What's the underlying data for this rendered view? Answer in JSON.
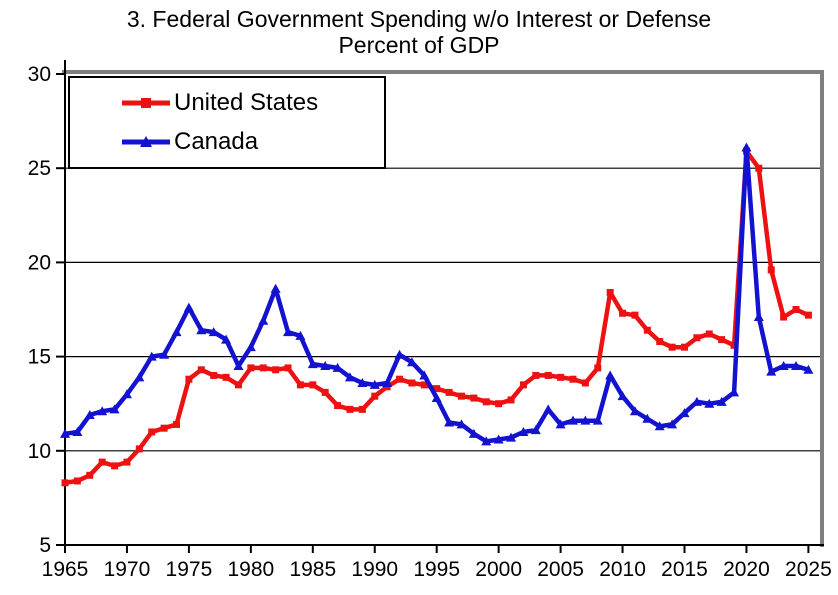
{
  "figure": {
    "title_line1": "3. Federal Government Spending w/o Interest or Defense",
    "title_line2": "Percent of GDP"
  },
  "legend": {
    "items": [
      {
        "label": "United States",
        "color": "#ed1111",
        "marker": "square"
      },
      {
        "label": "Canada",
        "color": "#1212d0",
        "marker": "triangle"
      }
    ]
  },
  "chart_data": {
    "type": "line",
    "title": "3. Federal Government Spending w/o Interest or Defense",
    "subtitle": "Percent of GDP",
    "xlabel": "",
    "ylabel": "Percent of GDP",
    "xlim": [
      1965,
      2025
    ],
    "ylim": [
      5,
      30
    ],
    "x_ticks": [
      1965,
      1970,
      1975,
      1980,
      1985,
      1990,
      1995,
      2000,
      2005,
      2010,
      2015,
      2020,
      2025
    ],
    "y_ticks": [
      5,
      10,
      15,
      20,
      25,
      30
    ],
    "grid": "horizontal",
    "legend_position": "top-left",
    "x": [
      1965,
      1966,
      1967,
      1968,
      1969,
      1970,
      1971,
      1972,
      1973,
      1974,
      1975,
      1976,
      1977,
      1978,
      1979,
      1980,
      1981,
      1982,
      1983,
      1984,
      1985,
      1986,
      1987,
      1988,
      1989,
      1990,
      1991,
      1992,
      1993,
      1994,
      1995,
      1996,
      1997,
      1998,
      1999,
      2000,
      2001,
      2002,
      2003,
      2004,
      2005,
      2006,
      2007,
      2008,
      2009,
      2010,
      2011,
      2012,
      2013,
      2014,
      2015,
      2016,
      2017,
      2018,
      2019,
      2020,
      2021,
      2022,
      2023,
      2024,
      2025
    ],
    "series": [
      {
        "name": "United States",
        "color": "#ed1111",
        "marker": "square",
        "values": [
          8.3,
          8.4,
          8.7,
          9.4,
          9.2,
          9.4,
          10.1,
          11.0,
          11.2,
          11.4,
          13.8,
          14.3,
          14.0,
          13.9,
          13.5,
          14.4,
          14.4,
          14.3,
          14.4,
          13.5,
          13.5,
          13.1,
          12.4,
          12.2,
          12.2,
          12.9,
          13.4,
          13.8,
          13.6,
          13.5,
          13.3,
          13.1,
          12.9,
          12.8,
          12.6,
          12.5,
          12.7,
          13.5,
          14.0,
          14.0,
          13.9,
          13.8,
          13.6,
          14.4,
          18.4,
          17.3,
          17.2,
          16.4,
          15.8,
          15.5,
          15.5,
          16.0,
          16.2,
          15.9,
          15.6,
          25.9,
          25.0,
          19.6,
          17.1,
          17.5,
          17.2
        ]
      },
      {
        "name": "Canada",
        "color": "#1212d0",
        "marker": "triangle",
        "values": [
          10.9,
          11.0,
          11.9,
          12.1,
          12.2,
          13.0,
          13.9,
          15.0,
          15.1,
          16.3,
          17.6,
          16.4,
          16.3,
          15.9,
          14.5,
          15.5,
          16.9,
          18.6,
          16.3,
          16.1,
          14.6,
          14.5,
          14.4,
          13.9,
          13.6,
          13.5,
          13.6,
          15.1,
          14.7,
          14.0,
          12.8,
          11.5,
          11.4,
          10.9,
          10.5,
          10.6,
          10.7,
          11.0,
          11.1,
          12.2,
          11.4,
          11.6,
          11.6,
          11.6,
          14.0,
          12.9,
          12.1,
          11.7,
          11.3,
          11.4,
          12.0,
          12.6,
          12.5,
          12.6,
          13.1,
          26.1,
          17.1,
          14.2,
          14.5,
          14.5,
          14.3
        ]
      }
    ],
    "colors": {
      "axis": "#000000",
      "gridline": "#000000",
      "outer_border": "#7f7f7f",
      "background": "#ffffff"
    }
  }
}
